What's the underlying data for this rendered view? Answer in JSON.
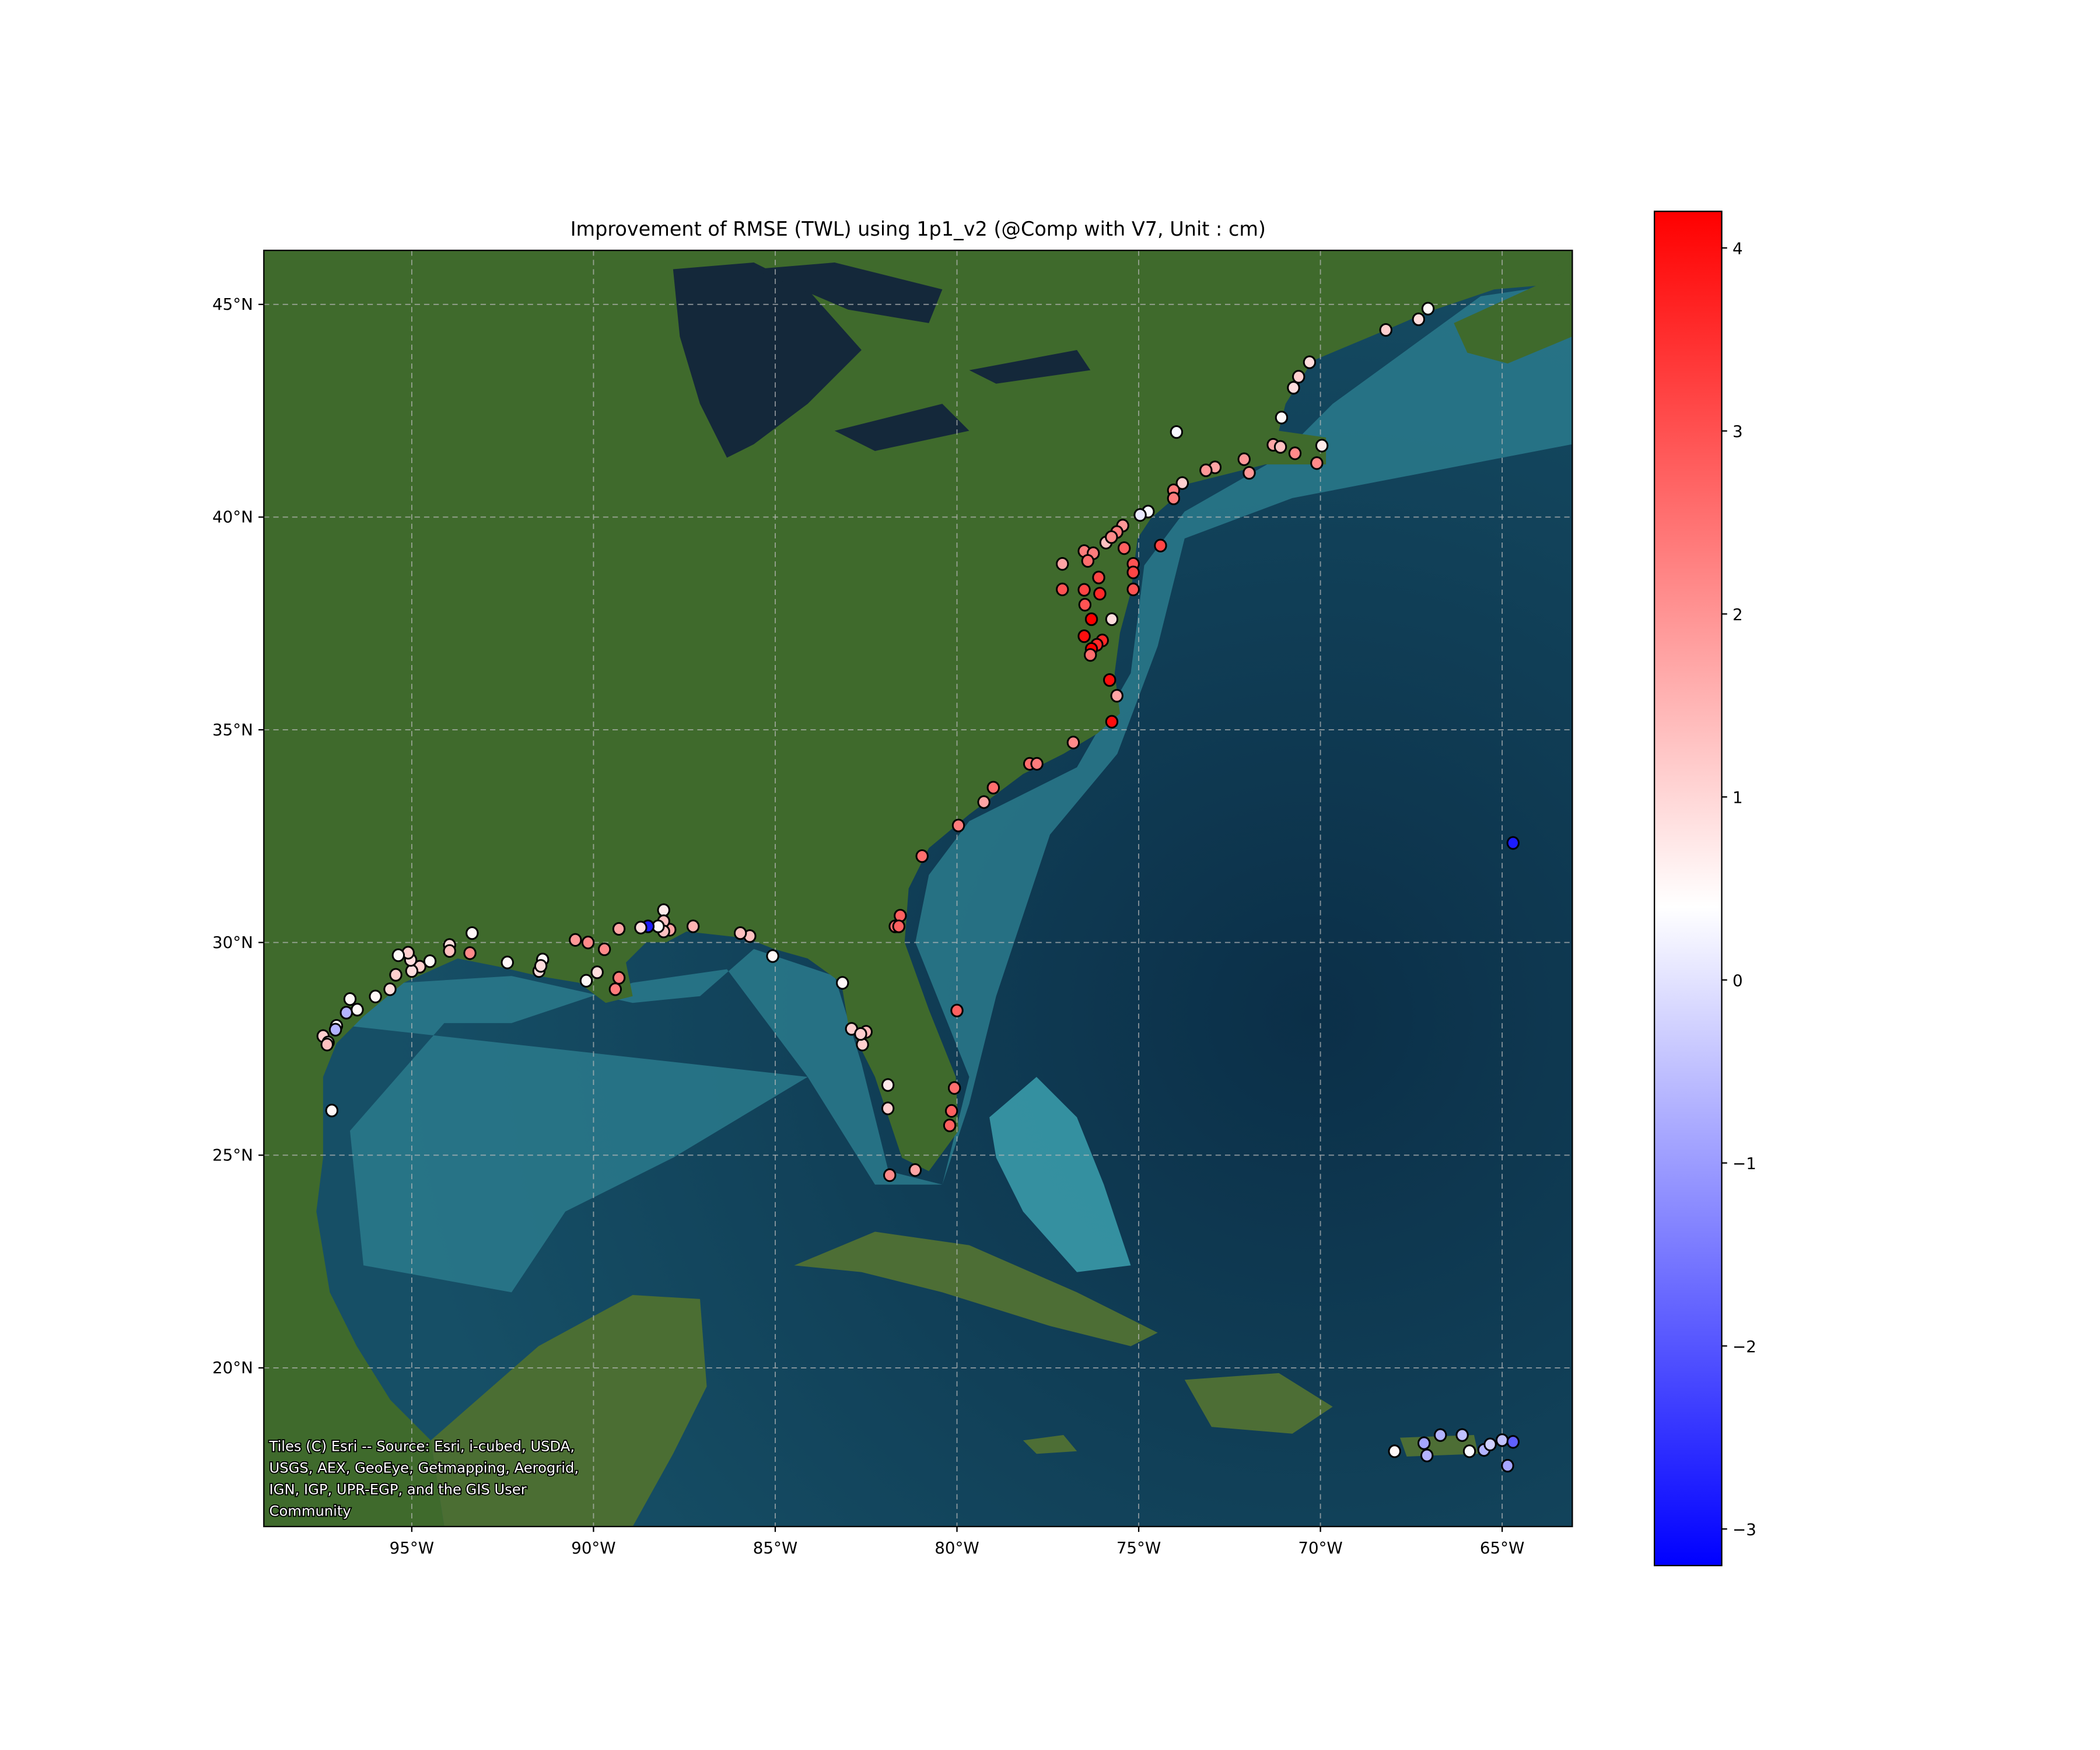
{
  "title": "Improvement of RMSE (TWL) using 1p1_v2 (@Comp with V7, Unit : cm)",
  "attribution": [
    "Tiles (C) Esri -- Source: Esri, i-cubed, USDA,",
    "USGS, AEX, GeoEye, Getmapping, Aerogrid,",
    "IGN, IGP, UPR-EGP, and the GIS User",
    "Community"
  ],
  "basemap": "Esri World Imagery (satellite)",
  "map": {
    "lon_range": [
      -99.07,
      -63.07
    ],
    "lat_range": [
      16.27,
      46.27
    ],
    "grid": true,
    "x_ticks": [
      {
        "v": -95,
        "label": "95°W"
      },
      {
        "v": -90,
        "label": "90°W"
      },
      {
        "v": -85,
        "label": "85°W"
      },
      {
        "v": -80,
        "label": "80°W"
      },
      {
        "v": -75,
        "label": "75°W"
      },
      {
        "v": -70,
        "label": "70°W"
      },
      {
        "v": -65,
        "label": "65°W"
      }
    ],
    "y_ticks": [
      {
        "v": 45,
        "label": "45°N"
      },
      {
        "v": 40,
        "label": "40°N"
      },
      {
        "v": 35,
        "label": "35°N"
      },
      {
        "v": 30,
        "label": "30°N"
      },
      {
        "v": 25,
        "label": "25°N"
      },
      {
        "v": 20,
        "label": "20°N"
      }
    ]
  },
  "colorbar": {
    "cmap": "bwr",
    "range": [
      -3.2,
      4.2
    ],
    "colors": {
      "low": "#0000ff",
      "mid": "#ffffff",
      "high": "#ff0000"
    },
    "ticks": [
      {
        "v": 4,
        "label": "4"
      },
      {
        "v": 3,
        "label": "3"
      },
      {
        "v": 2,
        "label": "2"
      },
      {
        "v": 1,
        "label": "1"
      },
      {
        "v": 0,
        "label": "0"
      },
      {
        "v": -1,
        "label": "−1"
      },
      {
        "v": -2,
        "label": "−2"
      },
      {
        "v": -3,
        "label": "−3"
      }
    ]
  },
  "chart_data": {
    "type": "scatter",
    "title": "Improvement of RMSE (TWL) using 1p1_v2 (@Comp with V7, Unit : cm)",
    "xlabel": "",
    "ylabel": "",
    "xlim": [
      -99.07,
      -63.07
    ],
    "ylim": [
      16.27,
      46.27
    ],
    "points": [
      [
        -67.04,
        44.9,
        0.6
      ],
      [
        -67.3,
        44.65,
        1.0
      ],
      [
        -68.2,
        44.4,
        1.2
      ],
      [
        -70.3,
        43.64,
        1.0
      ],
      [
        -70.6,
        43.3,
        1.2
      ],
      [
        -70.74,
        43.04,
        1.0
      ],
      [
        -71.07,
        42.34,
        0.6
      ],
      [
        -73.96,
        42.0,
        0.4
      ],
      [
        -71.3,
        41.7,
        1.8
      ],
      [
        -71.1,
        41.65,
        1.4
      ],
      [
        -69.96,
        41.68,
        0.8
      ],
      [
        -70.7,
        41.5,
        2.2
      ],
      [
        -70.1,
        41.27,
        2.2
      ],
      [
        -72.1,
        41.36,
        2.0
      ],
      [
        -71.96,
        41.04,
        2.0
      ],
      [
        -72.9,
        41.17,
        1.8
      ],
      [
        -73.15,
        41.1,
        2.0
      ],
      [
        -73.8,
        40.8,
        1.2
      ],
      [
        -74.04,
        40.63,
        2.4
      ],
      [
        -74.04,
        40.44,
        2.4
      ],
      [
        -74.74,
        40.13,
        0.4
      ],
      [
        -74.96,
        40.05,
        0.2
      ],
      [
        -75.44,
        39.8,
        2.0
      ],
      [
        -75.6,
        39.65,
        2.4
      ],
      [
        -75.9,
        39.4,
        1.4
      ],
      [
        -75.75,
        39.53,
        2.2
      ],
      [
        -75.4,
        39.27,
        2.8
      ],
      [
        -74.4,
        39.33,
        3.2
      ],
      [
        -76.5,
        39.2,
        2.4
      ],
      [
        -76.25,
        39.15,
        2.4
      ],
      [
        -76.4,
        38.97,
        2.6
      ],
      [
        -77.1,
        38.9,
        1.8
      ],
      [
        -75.15,
        38.9,
        3.0
      ],
      [
        -75.15,
        38.7,
        3.2
      ],
      [
        -76.1,
        38.58,
        3.2
      ],
      [
        -75.15,
        38.3,
        3.0
      ],
      [
        -77.1,
        38.3,
        3.0
      ],
      [
        -76.5,
        38.29,
        3.2
      ],
      [
        -76.07,
        38.2,
        3.6
      ],
      [
        -76.48,
        37.94,
        3.0
      ],
      [
        -75.74,
        37.6,
        1.0
      ],
      [
        -76.3,
        37.6,
        4.2
      ],
      [
        -76.5,
        37.2,
        4.0
      ],
      [
        -76.0,
        37.1,
        3.6
      ],
      [
        -76.15,
        37.0,
        3.6
      ],
      [
        -76.3,
        36.9,
        4.2
      ],
      [
        -76.33,
        36.76,
        2.6
      ],
      [
        -75.8,
        36.17,
        4.0
      ],
      [
        -75.6,
        35.8,
        1.8
      ],
      [
        -75.74,
        35.19,
        4.0
      ],
      [
        -76.8,
        34.7,
        2.2
      ],
      [
        -78.0,
        34.2,
        2.6
      ],
      [
        -77.8,
        34.2,
        2.4
      ],
      [
        -79.0,
        33.64,
        2.6
      ],
      [
        -79.26,
        33.3,
        1.8
      ],
      [
        -79.96,
        32.75,
        2.4
      ],
      [
        -80.96,
        32.03,
        2.6
      ],
      [
        -81.56,
        30.63,
        2.8
      ],
      [
        -81.7,
        30.38,
        2.6
      ],
      [
        -81.6,
        30.38,
        2.8
      ],
      [
        -80.0,
        28.4,
        2.8
      ],
      [
        -80.07,
        26.58,
        2.6
      ],
      [
        -80.15,
        26.04,
        2.8
      ],
      [
        -80.2,
        25.7,
        2.8
      ],
      [
        -81.15,
        24.65,
        1.8
      ],
      [
        -81.85,
        24.53,
        2.2
      ],
      [
        -81.9,
        26.1,
        1.2
      ],
      [
        -81.9,
        26.65,
        0.8
      ],
      [
        -82.6,
        27.6,
        1.2
      ],
      [
        -82.9,
        27.97,
        1.2
      ],
      [
        -82.5,
        27.9,
        1.5
      ],
      [
        -82.65,
        27.85,
        1.2
      ],
      [
        -83.15,
        29.05,
        0.6
      ],
      [
        -85.07,
        29.68,
        0.6
      ],
      [
        -85.7,
        30.15,
        1.4
      ],
      [
        -85.96,
        30.22,
        1.4
      ],
      [
        -87.26,
        30.38,
        1.6
      ],
      [
        -87.9,
        30.3,
        1.8
      ],
      [
        -88.07,
        30.76,
        0.8
      ],
      [
        -88.07,
        30.5,
        1.4
      ],
      [
        -88.07,
        30.26,
        1.4
      ],
      [
        -88.22,
        30.38,
        0.6
      ],
      [
        -88.5,
        30.38,
        -2.8
      ],
      [
        -88.7,
        30.35,
        1.0
      ],
      [
        -89.3,
        30.32,
        1.8
      ],
      [
        -89.7,
        29.84,
        2.2
      ],
      [
        -89.3,
        29.17,
        2.4
      ],
      [
        -89.4,
        28.9,
        2.4
      ],
      [
        -89.9,
        29.3,
        1.0
      ],
      [
        -90.2,
        29.1,
        0.6
      ],
      [
        -90.15,
        30.0,
        2.2
      ],
      [
        -90.5,
        30.06,
        2.0
      ],
      [
        -91.4,
        29.6,
        0.6
      ],
      [
        -91.5,
        29.33,
        1.0
      ],
      [
        -91.45,
        29.45,
        1.0
      ],
      [
        -92.37,
        29.53,
        0.6
      ],
      [
        -93.4,
        29.75,
        2.2
      ],
      [
        -93.34,
        30.22,
        0.6
      ],
      [
        -93.96,
        29.94,
        1.0
      ],
      [
        -93.96,
        29.8,
        1.4
      ],
      [
        -94.5,
        29.56,
        0.6
      ],
      [
        -94.78,
        29.43,
        1.2
      ],
      [
        -95.0,
        29.33,
        1.0
      ],
      [
        -95.03,
        29.59,
        1.0
      ],
      [
        -95.1,
        29.76,
        1.2
      ],
      [
        -95.37,
        29.7,
        0.6
      ],
      [
        -95.44,
        29.24,
        1.2
      ],
      [
        -95.6,
        28.9,
        1.0
      ],
      [
        -96.0,
        28.73,
        0.6
      ],
      [
        -96.5,
        28.42,
        0.6
      ],
      [
        -96.7,
        28.67,
        0.6
      ],
      [
        -96.8,
        28.35,
        -0.6
      ],
      [
        -97.07,
        28.04,
        0.6
      ],
      [
        -97.1,
        27.95,
        -0.6
      ],
      [
        -97.44,
        27.8,
        1.2
      ],
      [
        -97.3,
        27.65,
        0.6
      ],
      [
        -97.33,
        27.6,
        1.4
      ],
      [
        -97.2,
        26.05,
        0.6
      ],
      [
        -64.7,
        32.34,
        -2.8
      ],
      [
        -67.96,
        18.04,
        0.6
      ],
      [
        -67.15,
        18.23,
        -0.8
      ],
      [
        -67.07,
        17.94,
        -0.6
      ],
      [
        -66.7,
        18.42,
        -0.6
      ],
      [
        -66.1,
        18.42,
        -0.4
      ],
      [
        -65.9,
        18.04,
        0.4
      ],
      [
        -65.5,
        18.07,
        -0.6
      ],
      [
        -65.33,
        18.2,
        -0.2
      ],
      [
        -65.0,
        18.3,
        -0.4
      ],
      [
        -64.7,
        18.26,
        -1.8
      ],
      [
        -64.85,
        17.7,
        -0.8
      ]
    ],
    "point_fields": [
      "lon",
      "lat",
      "value_cm"
    ]
  }
}
